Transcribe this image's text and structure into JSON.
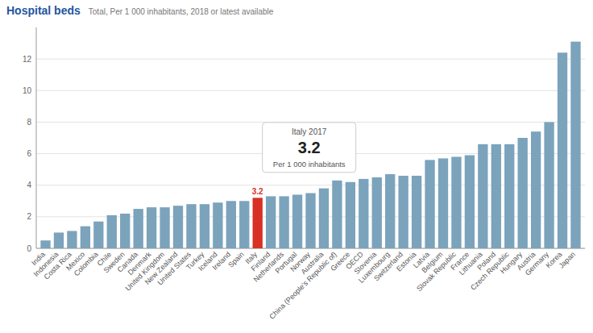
{
  "chart_data": {
    "type": "bar",
    "title": "Hospital beds",
    "subtitle": "Total, Per 1 000 inhabitants, 2018 or latest available",
    "categories": [
      "India",
      "Indonesia",
      "Costa Rica",
      "Mexico",
      "Colombia",
      "Chile",
      "Sweden",
      "Canada",
      "Denmark",
      "United Kingdom",
      "New Zealand",
      "United States",
      "Turkey",
      "Iceland",
      "Ireland",
      "Spain",
      "Italy",
      "Finland",
      "Netherlands",
      "Portugal",
      "Norway",
      "Australia",
      "China (People's Republic of)",
      "Greece",
      "OECD",
      "Slovenia",
      "Luxembourg",
      "Switzerland",
      "Estonia",
      "Latvia",
      "Belgium",
      "Slovak Republic",
      "France",
      "Lithuania",
      "Poland",
      "Czech Republic",
      "Hungary",
      "Austria",
      "Germany",
      "Korea",
      "Japan"
    ],
    "values": [
      0.5,
      1.0,
      1.1,
      1.4,
      1.7,
      2.1,
      2.2,
      2.5,
      2.6,
      2.6,
      2.7,
      2.8,
      2.8,
      2.9,
      3.0,
      3.0,
      3.2,
      3.3,
      3.3,
      3.4,
      3.5,
      3.8,
      4.3,
      4.2,
      4.4,
      4.5,
      4.7,
      4.6,
      4.6,
      5.6,
      5.7,
      5.8,
      5.9,
      6.6,
      6.6,
      6.6,
      7.0,
      7.4,
      8.0,
      12.4,
      13.1
    ],
    "colors": [
      "#7ba3bc",
      "#7ba3bc",
      "#7ba3bc",
      "#7ba3bc",
      "#7ba3bc",
      "#7ba3bc",
      "#7ba3bc",
      "#7ba3bc",
      "#7ba3bc",
      "#7ba3bc",
      "#7ba3bc",
      "#7ba3bc",
      "#7ba3bc",
      "#7ba3bc",
      "#7ba3bc",
      "#7ba3bc",
      "#d93025",
      "#7ba3bc",
      "#7ba3bc",
      "#7ba3bc",
      "#7ba3bc",
      "#7ba3bc",
      "#7ba3bc",
      "#7ba3bc",
      "#7ba3bc",
      "#7ba3bc",
      "#7ba3bc",
      "#7ba3bc",
      "#7ba3bc",
      "#7ba3bc",
      "#7ba3bc",
      "#7ba3bc",
      "#7ba3bc",
      "#7ba3bc",
      "#7ba3bc",
      "#7ba3bc",
      "#7ba3bc",
      "#7ba3bc",
      "#7ba3bc",
      "#7ba3bc",
      "#7ba3bc"
    ],
    "ylim": [
      0,
      14
    ],
    "yticks": [
      0,
      2,
      4,
      6,
      8,
      10,
      12
    ],
    "grid": true,
    "annotations": [
      {
        "text": "3.2",
        "category": "Italy"
      }
    ],
    "tooltip": {
      "category": "Italy",
      "title": "Italy 2017",
      "value": "3.2",
      "subtitle": "Per 1 000 inhabitants"
    }
  }
}
